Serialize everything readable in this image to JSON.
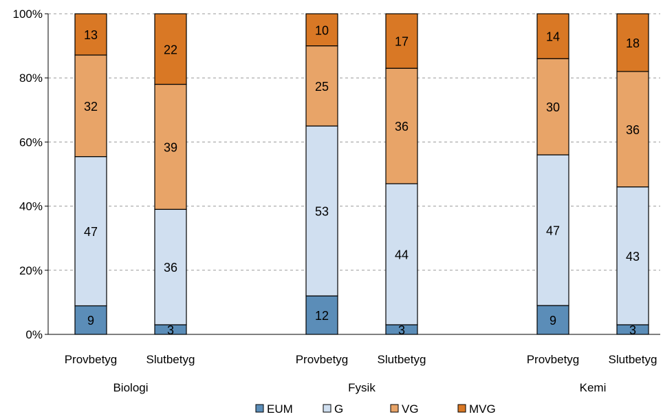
{
  "chart_data": {
    "type": "bar",
    "stacked": true,
    "normalized": true,
    "y_axis": {
      "ylim": [
        0,
        100
      ],
      "tick_labels": [
        "0%",
        "20%",
        "40%",
        "60%",
        "80%",
        "100%"
      ],
      "tick_values": [
        0,
        20,
        40,
        60,
        80,
        100
      ]
    },
    "grid": true,
    "legend_position": "bottom",
    "groups": [
      {
        "label": "Biologi",
        "categories": [
          "Provbetyg",
          "Slutbetyg"
        ]
      },
      {
        "label": "Fysik",
        "categories": [
          "Provbetyg",
          "Slutbetyg"
        ]
      },
      {
        "label": "Kemi",
        "categories": [
          "Provbetyg",
          "Slutbetyg"
        ]
      }
    ],
    "series": [
      {
        "name": "EUM",
        "color": "#5b8db8",
        "values": [
          9,
          3,
          12,
          3,
          9,
          3
        ]
      },
      {
        "name": "G",
        "color": "#d0dff0",
        "values": [
          47,
          36,
          53,
          44,
          47,
          43
        ]
      },
      {
        "name": "VG",
        "color": "#e8a468",
        "values": [
          32,
          39,
          25,
          36,
          30,
          36
        ]
      },
      {
        "name": "MVG",
        "color": "#d97825",
        "values": [
          13,
          22,
          10,
          17,
          14,
          18
        ]
      }
    ]
  }
}
